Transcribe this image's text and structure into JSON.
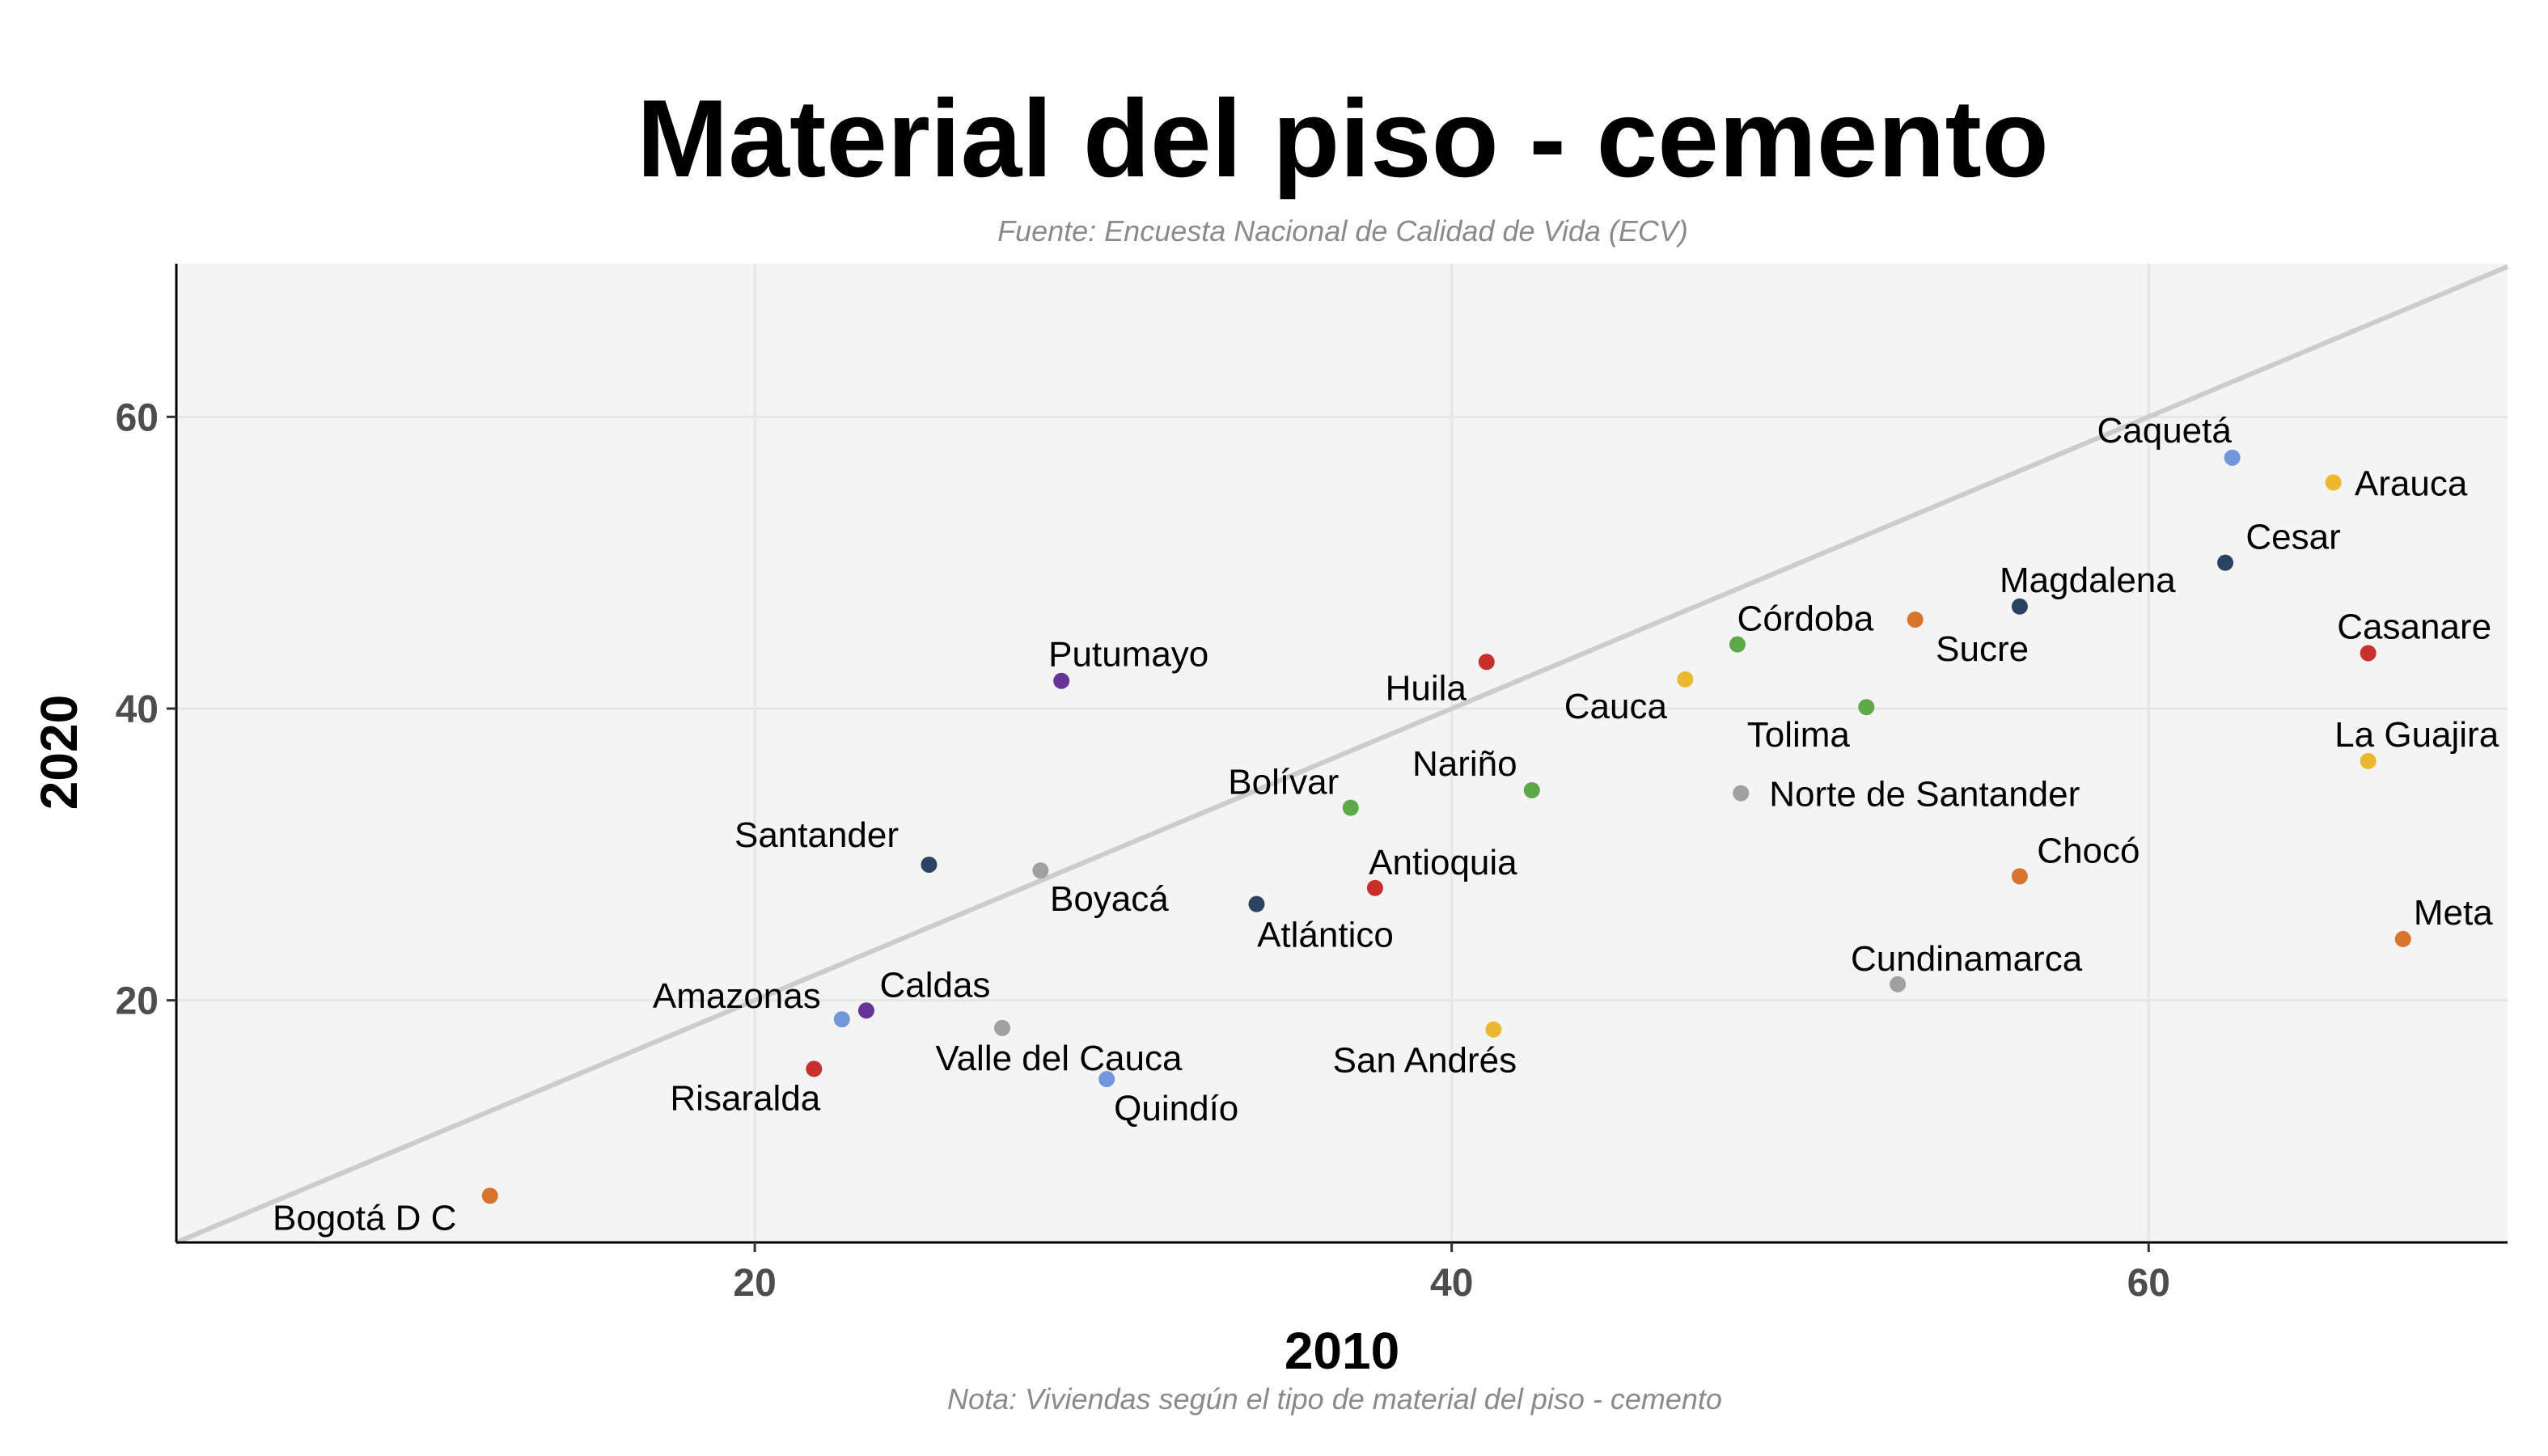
{
  "chart_data": {
    "type": "scatter",
    "title": "Material del piso - cemento",
    "subtitle": "Fuente: Encuesta Nacional de Calidad de Vida (ECV)",
    "caption": "Nota: Viviendas según el tipo de material del piso - cemento",
    "xlabel": "2010",
    "ylabel": "2020",
    "xlim": [
      3.4,
      70.3
    ],
    "ylim": [
      3.4,
      70.5
    ],
    "xticks": [
      20,
      40,
      60
    ],
    "yticks": [
      20,
      40,
      60
    ],
    "grid": true,
    "reference_line": "y = x",
    "points": [
      {
        "label": "Bogotá D C",
        "x": 12.4,
        "y": 6.6,
        "color": "#d9742e"
      },
      {
        "label": "Risaralda",
        "x": 21.7,
        "y": 15.3,
        "color": "#c9302c"
      },
      {
        "label": "Amazonas",
        "x": 22.5,
        "y": 18.7,
        "color": "#6f97d9"
      },
      {
        "label": "Caldas",
        "x": 23.2,
        "y": 19.3,
        "color": "#663399"
      },
      {
        "label": "Santander",
        "x": 25.0,
        "y": 29.3,
        "color": "#2b4363"
      },
      {
        "label": "Valle del Cauca",
        "x": 27.1,
        "y": 18.1,
        "color": "#a0a0a0"
      },
      {
        "label": "Boyacá",
        "x": 28.2,
        "y": 28.9,
        "color": "#a0a0a0"
      },
      {
        "label": "Putumayo",
        "x": 28.8,
        "y": 41.9,
        "color": "#663399"
      },
      {
        "label": "Quindío",
        "x": 30.1,
        "y": 14.6,
        "color": "#6f97d9"
      },
      {
        "label": "Atlántico",
        "x": 34.4,
        "y": 26.6,
        "color": "#2b4363"
      },
      {
        "label": "Bolívar",
        "x": 37.1,
        "y": 33.2,
        "color": "#5fa84a"
      },
      {
        "label": "Antioquia",
        "x": 37.8,
        "y": 27.7,
        "color": "#c9302c"
      },
      {
        "label": "Huila",
        "x": 41.0,
        "y": 43.2,
        "color": "#c9302c"
      },
      {
        "label": "San Andrés",
        "x": 41.2,
        "y": 18.0,
        "color": "#ebb82f"
      },
      {
        "label": "Nariño",
        "x": 42.3,
        "y": 34.4,
        "color": "#5fa84a"
      },
      {
        "label": "Cauca",
        "x": 46.7,
        "y": 42.0,
        "color": "#ebb82f"
      },
      {
        "label": "Córdoba",
        "x": 48.2,
        "y": 44.4,
        "color": "#5fa84a"
      },
      {
        "label": "Norte de Santander",
        "x": 48.3,
        "y": 34.2,
        "color": "#a0a0a0"
      },
      {
        "label": "Tolima",
        "x": 51.9,
        "y": 40.1,
        "color": "#5fa84a"
      },
      {
        "label": "Cundinamarca",
        "x": 52.8,
        "y": 21.1,
        "color": "#a0a0a0"
      },
      {
        "label": "Sucre",
        "x": 53.3,
        "y": 46.1,
        "color": "#d9742e"
      },
      {
        "label": "Chocó",
        "x": 56.3,
        "y": 28.5,
        "color": "#d9742e"
      },
      {
        "label": "Magdalena",
        "x": 56.3,
        "y": 47.0,
        "color": "#2b4363"
      },
      {
        "label": "Cesar",
        "x": 62.2,
        "y": 50.0,
        "color": "#2b4363"
      },
      {
        "label": "Caquetá",
        "x": 62.4,
        "y": 57.2,
        "color": "#6f97d9"
      },
      {
        "label": "Arauca",
        "x": 65.3,
        "y": 55.5,
        "color": "#ebb82f"
      },
      {
        "label": "Casanare",
        "x": 66.3,
        "y": 43.8,
        "color": "#c9302c"
      },
      {
        "label": "La Guajira",
        "x": 66.3,
        "y": 36.4,
        "color": "#ebb82f"
      },
      {
        "label": "Meta",
        "x": 67.3,
        "y": 24.2,
        "color": "#d9742e"
      }
    ]
  }
}
